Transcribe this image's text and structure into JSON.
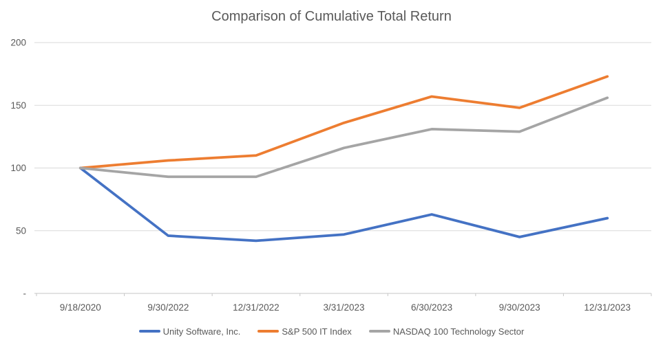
{
  "chart": {
    "title": "Comparison of Cumulative Total Return"
  },
  "chart_data": {
    "type": "line",
    "title": "Comparison of Cumulative Total Return",
    "xlabel": "",
    "ylabel": "",
    "categories": [
      "9/18/2020",
      "9/30/2022",
      "12/31/2022",
      "3/31/2023",
      "6/30/2023",
      "9/30/2023",
      "12/31/2023"
    ],
    "series": [
      {
        "name": "Unity Software, Inc.",
        "color": "#4472C4",
        "values": [
          100,
          46,
          42,
          47,
          63,
          45,
          60
        ]
      },
      {
        "name": "S&P 500 IT Index",
        "color": "#ED7D31",
        "values": [
          100,
          106,
          110,
          136,
          157,
          148,
          173
        ]
      },
      {
        "name": "NASDAQ 100 Technology Sector",
        "color": "#A5A5A5",
        "values": [
          100,
          93,
          93,
          116,
          131,
          129,
          156
        ]
      }
    ],
    "ylim": [
      0,
      200
    ],
    "y_ticks": [
      {
        "value": 200,
        "label": "200"
      },
      {
        "value": 150,
        "label": "150"
      },
      {
        "value": 100,
        "label": "100"
      },
      {
        "value": 50,
        "label": "50"
      },
      {
        "value": 0,
        "label": "-"
      }
    ],
    "grid": true,
    "legend_position": "bottom"
  },
  "style": {
    "background": "#FFFFFF",
    "grid_color": "#D9D9D9",
    "axis_line_color": "#C6C6C6",
    "label_color": "#595959",
    "title_color": "#595959"
  }
}
